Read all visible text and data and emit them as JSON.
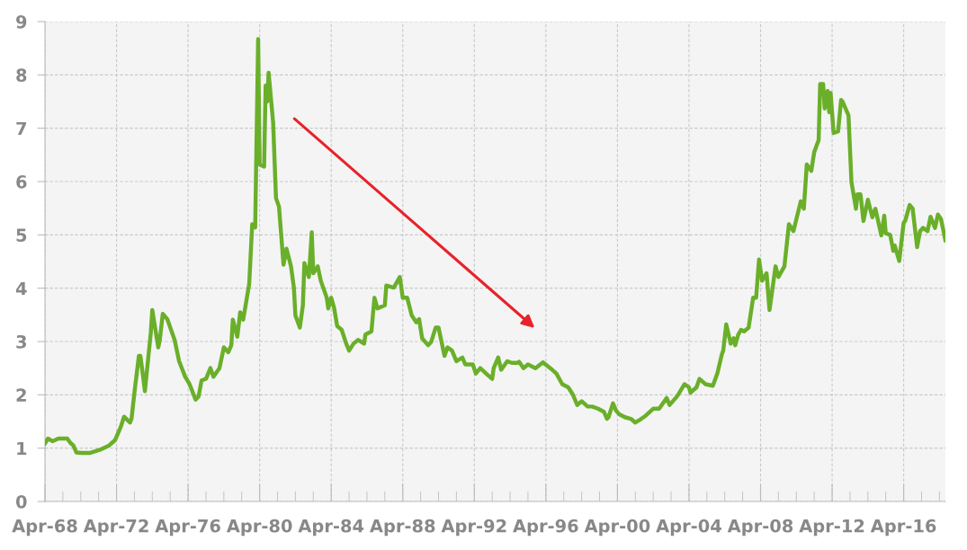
{
  "chart_data": {
    "type": "line",
    "xlim": [
      "1968-04",
      "2018-08"
    ],
    "ylim": [
      0,
      9
    ],
    "yticks": [
      0,
      1,
      2,
      3,
      4,
      5,
      6,
      7,
      8,
      9
    ],
    "xticks": [
      {
        "value": "1968-04",
        "label": "Apr-68"
      },
      {
        "value": "1969-04",
        "label": null
      },
      {
        "value": "1970-04",
        "label": null
      },
      {
        "value": "1971-04",
        "label": null
      },
      {
        "value": "1972-04",
        "label": "Apr-72"
      },
      {
        "value": "1973-04",
        "label": null
      },
      {
        "value": "1974-04",
        "label": null
      },
      {
        "value": "1975-04",
        "label": null
      },
      {
        "value": "1976-04",
        "label": "Apr-76"
      },
      {
        "value": "1977-04",
        "label": null
      },
      {
        "value": "1978-04",
        "label": null
      },
      {
        "value": "1979-04",
        "label": null
      },
      {
        "value": "1980-04",
        "label": "Apr-80"
      },
      {
        "value": "1981-04",
        "label": null
      },
      {
        "value": "1982-04",
        "label": null
      },
      {
        "value": "1983-04",
        "label": null
      },
      {
        "value": "1984-04",
        "label": "Apr-84"
      },
      {
        "value": "1985-04",
        "label": null
      },
      {
        "value": "1986-04",
        "label": null
      },
      {
        "value": "1987-04",
        "label": null
      },
      {
        "value": "1988-04",
        "label": "Apr-88"
      },
      {
        "value": "1989-04",
        "label": null
      },
      {
        "value": "1990-04",
        "label": null
      },
      {
        "value": "1991-04",
        "label": null
      },
      {
        "value": "1992-04",
        "label": "Apr-92"
      },
      {
        "value": "1993-04",
        "label": null
      },
      {
        "value": "1994-04",
        "label": null
      },
      {
        "value": "1995-04",
        "label": null
      },
      {
        "value": "1996-04",
        "label": "Apr-96"
      },
      {
        "value": "1997-04",
        "label": null
      },
      {
        "value": "1998-04",
        "label": null
      },
      {
        "value": "1999-04",
        "label": null
      },
      {
        "value": "2000-04",
        "label": "Apr-00"
      },
      {
        "value": "2001-04",
        "label": null
      },
      {
        "value": "2002-04",
        "label": null
      },
      {
        "value": "2003-04",
        "label": null
      },
      {
        "value": "2004-04",
        "label": "Apr-04"
      },
      {
        "value": "2005-04",
        "label": null
      },
      {
        "value": "2006-04",
        "label": null
      },
      {
        "value": "2007-04",
        "label": null
      },
      {
        "value": "2008-04",
        "label": "Apr-08"
      },
      {
        "value": "2009-04",
        "label": null
      },
      {
        "value": "2010-04",
        "label": null
      },
      {
        "value": "2011-04",
        "label": null
      },
      {
        "value": "2012-04",
        "label": "Apr-12"
      },
      {
        "value": "2013-04",
        "label": null
      },
      {
        "value": "2014-04",
        "label": null
      },
      {
        "value": "2015-04",
        "label": null
      },
      {
        "value": "2016-04",
        "label": "Apr-16"
      },
      {
        "value": "2017-04",
        "label": null
      },
      {
        "value": "2018-04",
        "label": null
      }
    ],
    "grid": true,
    "marker": "none",
    "line_style": "solid",
    "series": [
      {
        "color": "#6aaf2a",
        "x": [
          "1968-04",
          "1968-06",
          "1968-09",
          "1969-01",
          "1969-07",
          "1969-09",
          "1969-11",
          "1970-01",
          "1970-05",
          "1970-10",
          "1971-05",
          "1971-11",
          "1972-03",
          "1972-07",
          "1972-09",
          "1973-01",
          "1973-02",
          "1973-04",
          "1973-07",
          "1973-08",
          "1973-10",
          "1973-11",
          "1974-03",
          "1974-04",
          "1974-08",
          "1974-09",
          "1974-11",
          "1975-02",
          "1975-07",
          "1975-10",
          "1976-02",
          "1976-05",
          "1976-09",
          "1976-11",
          "1977-01",
          "1977-04",
          "1977-07",
          "1977-09",
          "1978-01",
          "1978-04",
          "1978-07",
          "1978-09",
          "1978-10",
          "1979-01",
          "1979-03",
          "1979-05",
          "1979-09",
          "1979-11",
          "1980-01",
          "1980-03",
          "1980-04",
          "1980-07",
          "1980-08",
          "1980-09",
          "1980-10",
          "1981-01",
          "1981-03",
          "1981-05",
          "1981-08",
          "1981-10",
          "1982-01",
          "1982-03",
          "1982-04",
          "1982-07",
          "1982-09",
          "1982-10",
          "1983-01",
          "1983-03",
          "1983-04",
          "1983-07",
          "1983-09",
          "1984-01",
          "1984-02",
          "1984-04",
          "1984-06",
          "1984-08",
          "1984-11",
          "1985-02",
          "1985-04",
          "1985-07",
          "1985-10",
          "1986-02",
          "1986-03",
          "1986-07",
          "1986-09",
          "1986-11",
          "1987-04",
          "1987-05",
          "1987-10",
          "1988-02",
          "1988-04",
          "1988-07",
          "1988-10",
          "1989-01",
          "1989-03",
          "1989-05",
          "1989-09",
          "1989-11",
          "1990-02",
          "1990-04",
          "1990-08",
          "1990-10",
          "1991-01",
          "1991-04",
          "1991-08",
          "1991-10",
          "1992-03",
          "1992-05",
          "1992-08",
          "1993-01",
          "1993-04",
          "1993-05",
          "1993-08",
          "1993-10",
          "1994-02",
          "1994-05",
          "1994-09",
          "1994-10",
          "1995-01",
          "1995-04",
          "1995-09",
          "1996-02",
          "1996-07",
          "1996-11",
          "1997-03",
          "1997-07",
          "1997-10",
          "1998-01",
          "1998-04",
          "1998-08",
          "1998-11",
          "1999-03",
          "1999-07",
          "1999-09",
          "1999-10",
          "2000-01",
          "2000-03",
          "2000-05",
          "2000-09",
          "2001-01",
          "2001-04",
          "2001-08",
          "2001-11",
          "2002-04",
          "2002-08",
          "2003-01",
          "2003-03",
          "2003-08",
          "2004-01",
          "2004-04",
          "2004-05",
          "2004-09",
          "2004-11",
          "2005-03",
          "2005-08",
          "2005-11",
          "2006-02",
          "2006-03",
          "2006-05",
          "2006-08",
          "2006-10",
          "2006-11",
          "2007-01",
          "2007-03",
          "2007-05",
          "2007-08",
          "2007-11",
          "2008-01",
          "2008-03",
          "2008-05",
          "2008-08",
          "2008-10",
          "2009-02",
          "2009-04",
          "2009-08",
          "2009-11",
          "2010-02",
          "2010-07",
          "2010-09",
          "2010-11",
          "2011-02",
          "2011-04",
          "2011-07",
          "2011-08",
          "2011-10",
          "2011-11",
          "2012-01",
          "2012-02",
          "2012-03",
          "2012-05",
          "2012-08",
          "2012-10",
          "2012-11",
          "2013-03",
          "2013-05",
          "2013-08",
          "2013-09",
          "2013-11",
          "2014-01",
          "2014-04",
          "2014-07",
          "2014-09",
          "2015-01",
          "2015-03",
          "2015-04",
          "2015-07",
          "2015-09",
          "2015-10",
          "2016-01",
          "2016-04",
          "2016-05",
          "2016-08",
          "2016-10",
          "2017-01",
          "2017-03",
          "2017-05",
          "2017-08",
          "2017-10",
          "2018-01",
          "2018-03",
          "2018-05",
          "2018-08"
        ],
        "values": [
          1.09,
          1.18,
          1.13,
          1.18,
          1.18,
          1.1,
          1.05,
          0.92,
          0.91,
          0.91,
          0.97,
          1.05,
          1.15,
          1.41,
          1.59,
          1.48,
          1.55,
          2.04,
          2.73,
          2.73,
          2.3,
          2.07,
          3.16,
          3.59,
          2.89,
          3.03,
          3.52,
          3.42,
          3.03,
          2.63,
          2.34,
          2.2,
          1.91,
          1.97,
          2.27,
          2.3,
          2.5,
          2.34,
          2.5,
          2.89,
          2.8,
          2.93,
          3.41,
          3.09,
          3.55,
          3.41,
          4.08,
          5.2,
          5.14,
          8.67,
          6.32,
          6.28,
          7.8,
          7.5,
          8.04,
          7.11,
          5.69,
          5.53,
          4.44,
          4.74,
          4.41,
          4.01,
          3.49,
          3.26,
          3.68,
          4.47,
          4.21,
          5.05,
          4.28,
          4.41,
          4.14,
          3.82,
          3.62,
          3.82,
          3.62,
          3.29,
          3.22,
          2.96,
          2.83,
          2.96,
          3.03,
          2.96,
          3.13,
          3.19,
          3.82,
          3.62,
          3.68,
          4.05,
          4.01,
          4.21,
          3.82,
          3.82,
          3.49,
          3.36,
          3.42,
          3.06,
          2.93,
          2.99,
          3.26,
          3.26,
          2.73,
          2.89,
          2.83,
          2.63,
          2.7,
          2.57,
          2.57,
          2.4,
          2.5,
          2.37,
          2.3,
          2.5,
          2.7,
          2.47,
          2.63,
          2.6,
          2.6,
          2.62,
          2.5,
          2.57,
          2.5,
          2.61,
          2.5,
          2.4,
          2.2,
          2.14,
          2.01,
          1.81,
          1.88,
          1.78,
          1.78,
          1.74,
          1.68,
          1.55,
          1.58,
          1.84,
          1.71,
          1.64,
          1.58,
          1.55,
          1.48,
          1.55,
          1.61,
          1.74,
          1.74,
          1.94,
          1.81,
          1.97,
          2.2,
          2.14,
          2.04,
          2.14,
          2.3,
          2.2,
          2.17,
          2.4,
          2.76,
          2.83,
          3.32,
          2.96,
          3.06,
          2.93,
          3.13,
          3.22,
          3.19,
          3.26,
          3.82,
          3.82,
          4.54,
          4.14,
          4.28,
          3.59,
          4.41,
          4.21,
          4.41,
          5.2,
          5.07,
          5.63,
          5.49,
          6.32,
          6.2,
          6.55,
          6.78,
          7.83,
          7.83,
          7.37,
          7.7,
          7.3,
          7.66,
          6.91,
          6.94,
          7.53,
          7.5,
          7.24,
          5.99,
          5.49,
          5.76,
          5.76,
          5.26,
          5.66,
          5.33,
          5.49,
          4.99,
          5.36,
          5.03,
          5.0,
          4.7,
          4.8,
          4.51,
          5.23,
          5.26,
          5.56,
          5.49,
          4.77,
          5.07,
          5.13,
          5.07,
          5.34,
          5.13,
          5.38,
          5.3,
          4.9
        ]
      }
    ]
  }
}
